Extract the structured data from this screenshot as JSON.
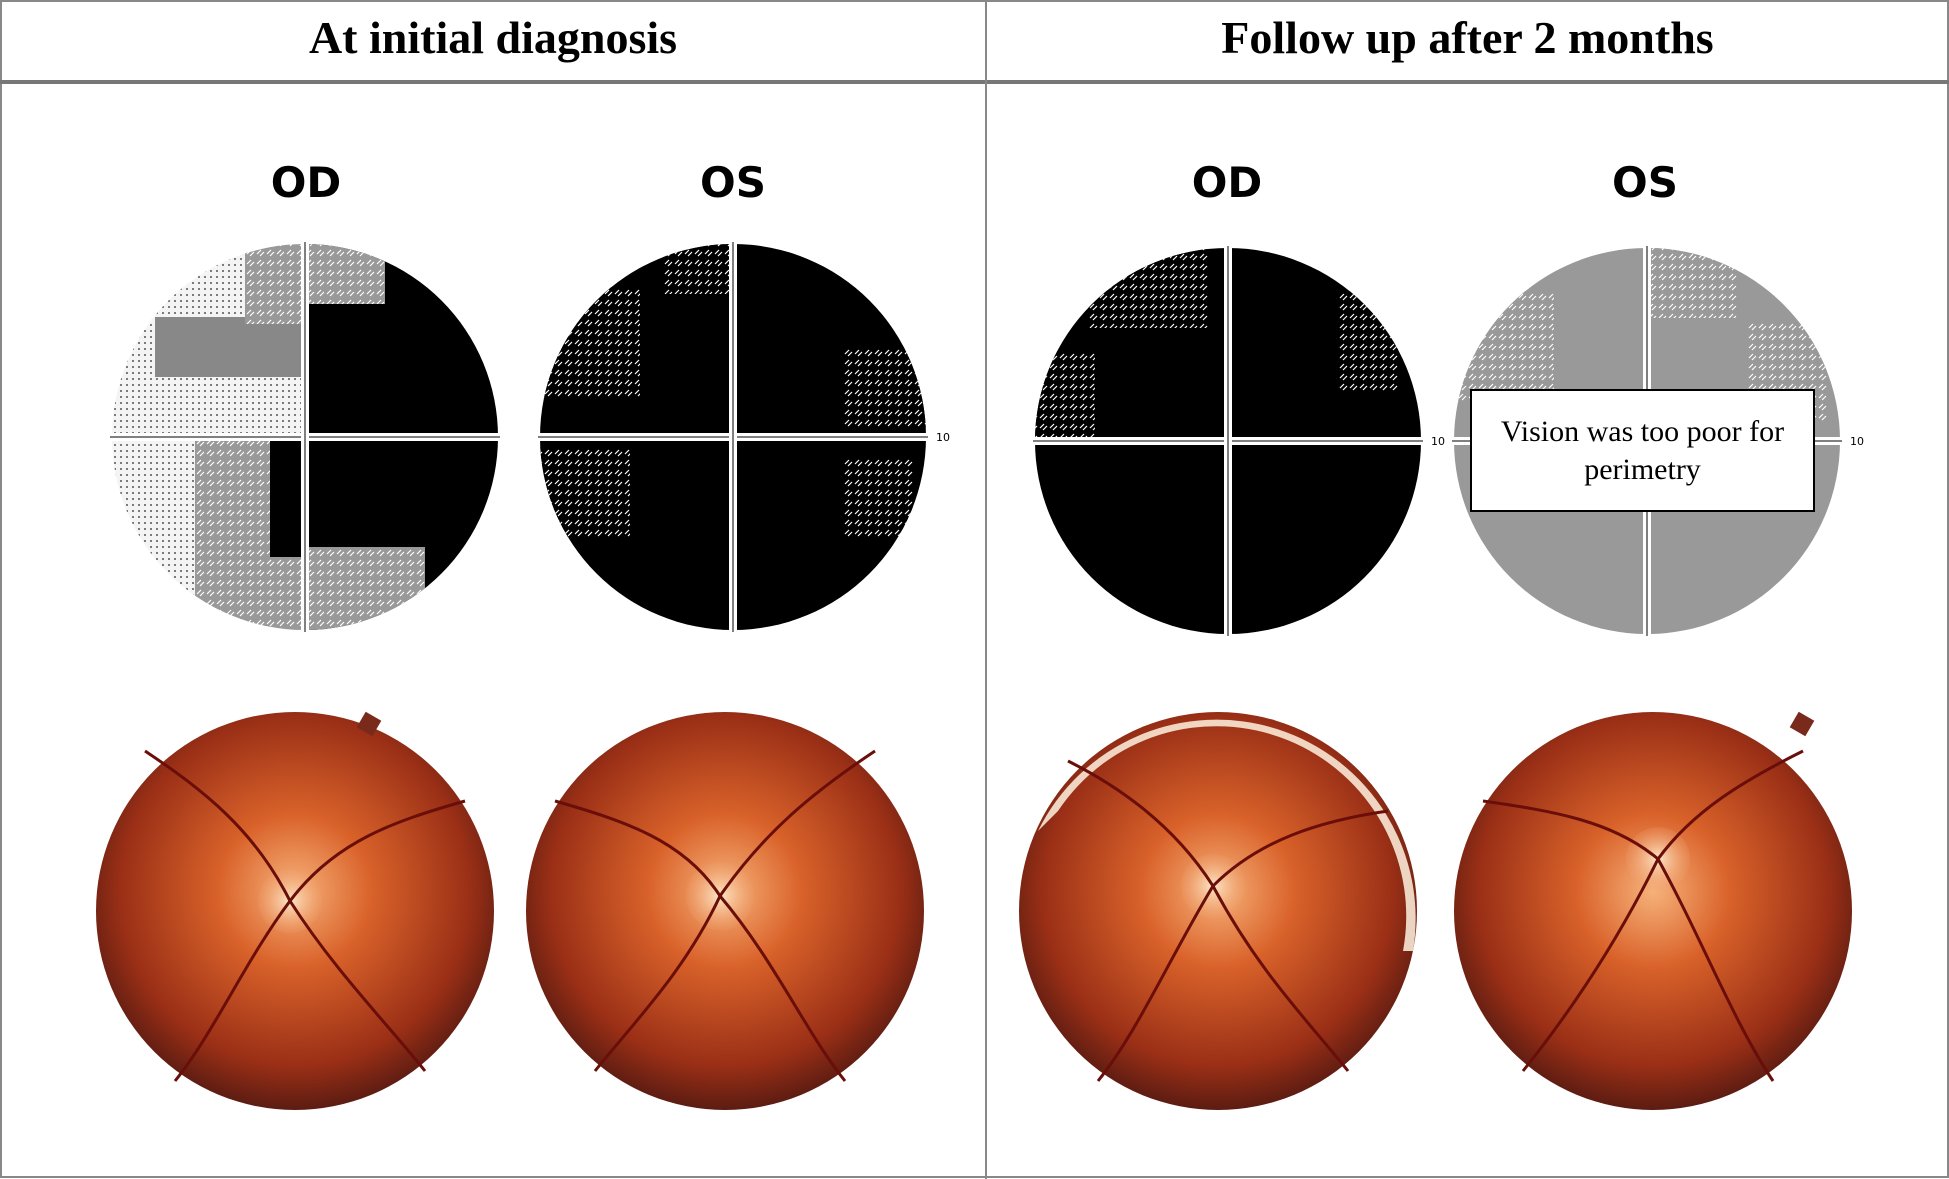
{
  "columns": [
    {
      "title": "At initial diagnosis",
      "eyes": [
        "OD",
        "OS"
      ]
    },
    {
      "title": "Follow up after 2 months",
      "eyes": [
        "OD",
        "OS"
      ]
    }
  ],
  "axis_labels": [
    "10",
    "10",
    "10"
  ],
  "note": "Vision was too poor for perimetry"
}
